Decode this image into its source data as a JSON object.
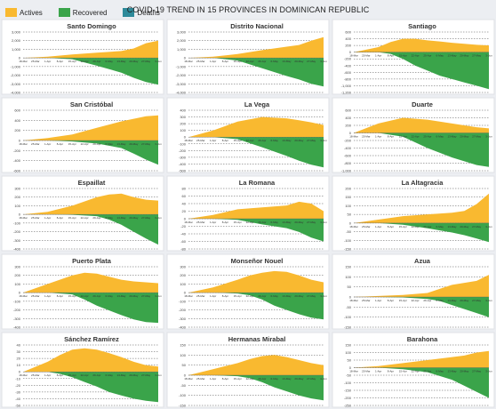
{
  "title": "COVID-19 TREND IN 15 PROVINCES IN DOMINICAN REPUBLIC",
  "legend": [
    {
      "label": "Actives",
      "color": "#f9b930"
    },
    {
      "label": "Recovered",
      "color": "#3aa44a"
    },
    {
      "label": "Deaths",
      "color": "#2e8a9a"
    }
  ],
  "x_tick_labels": [
    "18-Mar",
    "25-Mar",
    "1-Apr",
    "8-Apr",
    "15-Apr",
    "22-Apr",
    "29-Apr",
    "6-May",
    "13-May",
    "20-May",
    "27-May",
    "3-Jun"
  ],
  "chart_data": [
    {
      "type": "area",
      "title": "Santo Domingo",
      "y_ticks": [
        3000,
        2000,
        1000,
        0,
        -1000,
        -2000,
        -3000,
        -4000
      ],
      "ylim": [
        -4000,
        3000
      ],
      "series": [
        {
          "name": "Actives",
          "x": [
            0,
            2,
            4,
            6,
            8,
            9,
            10,
            11
          ],
          "values": [
            0,
            150,
            400,
            600,
            800,
            1100,
            1700,
            2000
          ]
        },
        {
          "name": "Recovered",
          "x": [
            0,
            2,
            4,
            6,
            8,
            9,
            10,
            11
          ],
          "values": [
            0,
            0,
            -150,
            -900,
            -1700,
            -2300,
            -2800,
            -3100
          ]
        }
      ]
    },
    {
      "type": "area",
      "title": "Distrito Nacional",
      "y_ticks": [
        3000,
        2000,
        1000,
        0,
        -1000,
        -2000,
        -3000,
        -4000
      ],
      "ylim": [
        -4000,
        3000
      ],
      "series": [
        {
          "name": "Actives",
          "x": [
            0,
            2,
            4,
            6,
            8,
            9,
            10,
            11
          ],
          "values": [
            0,
            150,
            450,
            900,
            1300,
            1500,
            2000,
            2400
          ]
        },
        {
          "name": "Recovered",
          "x": [
            0,
            2,
            4,
            6,
            8,
            9,
            10,
            11
          ],
          "values": [
            0,
            0,
            -300,
            -1200,
            -2100,
            -2500,
            -3000,
            -3300
          ]
        }
      ]
    },
    {
      "type": "area",
      "title": "Santiago",
      "y_ticks": [
        600,
        400,
        200,
        0,
        -200,
        -400,
        -600,
        -800,
        -1000,
        -1200
      ],
      "ylim": [
        -1200,
        600
      ],
      "series": [
        {
          "name": "Actives",
          "x": [
            0,
            2,
            3,
            4,
            5,
            6,
            7,
            8,
            9,
            10,
            11
          ],
          "values": [
            0,
            150,
            300,
            400,
            400,
            350,
            320,
            280,
            250,
            220,
            200
          ]
        },
        {
          "name": "Recovered",
          "x": [
            0,
            2,
            3,
            4,
            5,
            6,
            7,
            8,
            9,
            10,
            11
          ],
          "values": [
            0,
            0,
            -50,
            -200,
            -400,
            -550,
            -700,
            -800,
            -900,
            -1000,
            -1100
          ]
        }
      ]
    },
    {
      "type": "area",
      "title": "San Cristóbal",
      "y_ticks": [
        600,
        400,
        200,
        0,
        -200,
        -400,
        -600
      ],
      "ylim": [
        -600,
        600
      ],
      "series": [
        {
          "name": "Actives",
          "x": [
            0,
            2,
            4,
            6,
            8,
            9,
            10,
            11
          ],
          "values": [
            0,
            50,
            120,
            250,
            380,
            430,
            480,
            500
          ]
        },
        {
          "name": "Recovered",
          "x": [
            0,
            2,
            4,
            6,
            8,
            9,
            10,
            11
          ],
          "values": [
            0,
            0,
            -20,
            -60,
            -150,
            -260,
            -380,
            -480
          ]
        }
      ]
    },
    {
      "type": "area",
      "title": "La Vega",
      "y_ticks": [
        400,
        300,
        200,
        100,
        0,
        -100,
        -200,
        -300,
        -400,
        -500
      ],
      "ylim": [
        -500,
        400
      ],
      "series": [
        {
          "name": "Actives",
          "x": [
            0,
            2,
            4,
            6,
            8,
            9,
            10,
            11
          ],
          "values": [
            0,
            100,
            230,
            300,
            280,
            250,
            220,
            180
          ]
        },
        {
          "name": "Recovered",
          "x": [
            0,
            2,
            4,
            6,
            8,
            9,
            10,
            11
          ],
          "values": [
            0,
            0,
            -30,
            -150,
            -280,
            -350,
            -410,
            -450
          ]
        }
      ]
    },
    {
      "type": "area",
      "title": "Duarte",
      "y_ticks": [
        600,
        400,
        200,
        0,
        -200,
        -400,
        -600,
        -800,
        -1000
      ],
      "ylim": [
        -1000,
        600
      ],
      "series": [
        {
          "name": "Actives",
          "x": [
            0,
            2,
            4,
            6,
            8,
            9,
            10,
            11
          ],
          "values": [
            0,
            250,
            400,
            350,
            250,
            200,
            150,
            120
          ]
        },
        {
          "name": "Recovered",
          "x": [
            0,
            2,
            4,
            6,
            8,
            9,
            10,
            11
          ],
          "values": [
            0,
            0,
            -100,
            -400,
            -650,
            -750,
            -850,
            -900
          ]
        }
      ]
    },
    {
      "type": "area",
      "title": "Espaillat",
      "y_ticks": [
        300,
        200,
        100,
        0,
        -100,
        -200,
        -300,
        -400
      ],
      "ylim": [
        -400,
        300
      ],
      "series": [
        {
          "name": "Actives",
          "x": [
            0,
            2,
            4,
            6,
            7,
            8,
            9,
            10,
            11
          ],
          "values": [
            0,
            30,
            100,
            200,
            230,
            240,
            200,
            170,
            160
          ]
        },
        {
          "name": "Recovered",
          "x": [
            0,
            2,
            4,
            6,
            7,
            8,
            9,
            10,
            11
          ],
          "values": [
            0,
            0,
            -5,
            -20,
            -60,
            -120,
            -200,
            -280,
            -350
          ]
        }
      ]
    },
    {
      "type": "area",
      "title": "La Romana",
      "y_ticks": [
        80,
        60,
        40,
        20,
        0,
        -20,
        -40,
        -60,
        -80
      ],
      "ylim": [
        -80,
        80
      ],
      "series": [
        {
          "name": "Actives",
          "x": [
            0,
            2,
            4,
            6,
            8,
            9,
            10,
            11
          ],
          "values": [
            0,
            10,
            25,
            30,
            35,
            45,
            40,
            20
          ]
        },
        {
          "name": "Recovered",
          "x": [
            0,
            2,
            4,
            6,
            8,
            9,
            10,
            11
          ],
          "values": [
            0,
            0,
            -3,
            -15,
            -25,
            -35,
            -50,
            -60
          ]
        }
      ]
    },
    {
      "type": "area",
      "title": "La Altagracia",
      "y_ticks": [
        200,
        150,
        100,
        50,
        0,
        -50,
        -100,
        -150
      ],
      "ylim": [
        -150,
        200
      ],
      "series": [
        {
          "name": "Actives",
          "x": [
            0,
            2,
            4,
            6,
            8,
            9,
            10,
            11
          ],
          "values": [
            0,
            20,
            40,
            50,
            60,
            70,
            110,
            170
          ]
        },
        {
          "name": "Recovered",
          "x": [
            0,
            2,
            4,
            6,
            8,
            9,
            10,
            11
          ],
          "values": [
            0,
            0,
            -10,
            -30,
            -55,
            -70,
            -90,
            -110
          ]
        }
      ]
    },
    {
      "type": "area",
      "title": "Puerto Plata",
      "y_ticks": [
        300,
        200,
        100,
        0,
        -100,
        -200,
        -300,
        -400
      ],
      "ylim": [
        -400,
        300
      ],
      "series": [
        {
          "name": "Actives",
          "x": [
            0,
            2,
            4,
            5,
            6,
            8,
            9,
            10,
            11
          ],
          "values": [
            0,
            100,
            200,
            230,
            220,
            150,
            130,
            120,
            110
          ]
        },
        {
          "name": "Recovered",
          "x": [
            0,
            2,
            4,
            5,
            6,
            8,
            9,
            10,
            11
          ],
          "values": [
            0,
            0,
            -20,
            -80,
            -150,
            -260,
            -310,
            -340,
            -350
          ]
        }
      ]
    },
    {
      "type": "area",
      "title": "Monseñor Nouel",
      "y_ticks": [
        300,
        200,
        100,
        0,
        -100,
        -200,
        -300,
        -400
      ],
      "ylim": [
        -400,
        300
      ],
      "series": [
        {
          "name": "Actives",
          "x": [
            0,
            2,
            4,
            5,
            6,
            7,
            8,
            9,
            10,
            11
          ],
          "values": [
            0,
            60,
            150,
            200,
            230,
            250,
            240,
            200,
            150,
            120
          ]
        },
        {
          "name": "Recovered",
          "x": [
            0,
            2,
            4,
            5,
            6,
            7,
            8,
            9,
            10,
            11
          ],
          "values": [
            0,
            0,
            -10,
            -30,
            -80,
            -150,
            -200,
            -250,
            -290,
            -310
          ]
        }
      ]
    },
    {
      "type": "area",
      "title": "Azua",
      "y_ticks": [
        150,
        100,
        50,
        0,
        -50,
        -100,
        -150
      ],
      "ylim": [
        -150,
        150
      ],
      "series": [
        {
          "name": "Actives",
          "x": [
            0,
            2,
            4,
            6,
            7,
            8,
            9,
            10,
            11
          ],
          "values": [
            0,
            5,
            10,
            20,
            40,
            60,
            70,
            80,
            110
          ]
        },
        {
          "name": "Recovered",
          "x": [
            0,
            2,
            4,
            6,
            7,
            8,
            9,
            10,
            11
          ],
          "values": [
            0,
            0,
            -2,
            -10,
            -20,
            -40,
            -60,
            -80,
            -100
          ]
        }
      ]
    },
    {
      "type": "area",
      "title": "Sánchez Ramírez",
      "y_ticks": [
        40,
        30,
        20,
        10,
        0,
        -10,
        -20,
        -30,
        -40,
        -50
      ],
      "ylim": [
        -50,
        40
      ],
      "series": [
        {
          "name": "Actives",
          "x": [
            0,
            2,
            3,
            4,
            5,
            6,
            7,
            8,
            9,
            10,
            11
          ],
          "values": [
            0,
            15,
            25,
            33,
            35,
            33,
            28,
            22,
            15,
            10,
            8
          ]
        },
        {
          "name": "Recovered",
          "x": [
            0,
            2,
            3,
            4,
            5,
            6,
            7,
            8,
            9,
            10,
            11
          ],
          "values": [
            0,
            0,
            -3,
            -8,
            -15,
            -22,
            -30,
            -35,
            -40,
            -43,
            -45
          ]
        }
      ]
    },
    {
      "type": "area",
      "title": "Hermanas Mirabal",
      "y_ticks": [
        150,
        100,
        50,
        0,
        -50,
        -100,
        -150
      ],
      "ylim": [
        -150,
        150
      ],
      "series": [
        {
          "name": "Actives",
          "x": [
            0,
            2,
            4,
            5,
            6,
            7,
            8,
            9,
            10,
            11
          ],
          "values": [
            0,
            30,
            60,
            80,
            95,
            100,
            90,
            75,
            60,
            50
          ]
        },
        {
          "name": "Recovered",
          "x": [
            0,
            2,
            4,
            5,
            6,
            7,
            8,
            9,
            10,
            11
          ],
          "values": [
            0,
            0,
            -5,
            -15,
            -35,
            -60,
            -80,
            -100,
            -115,
            -125
          ]
        }
      ]
    },
    {
      "type": "area",
      "title": "Barahona",
      "y_ticks": [
        150,
        100,
        50,
        0,
        -50,
        -100,
        -150,
        -200,
        -250
      ],
      "ylim": [
        -250,
        150
      ],
      "series": [
        {
          "name": "Actives",
          "x": [
            0,
            2,
            4,
            6,
            8,
            9,
            10,
            11
          ],
          "values": [
            0,
            10,
            30,
            50,
            70,
            80,
            100,
            110
          ]
        },
        {
          "name": "Recovered",
          "x": [
            0,
            2,
            4,
            6,
            8,
            9,
            10,
            11
          ],
          "values": [
            0,
            0,
            -10,
            -30,
            -80,
            -120,
            -160,
            -200
          ]
        }
      ]
    }
  ]
}
